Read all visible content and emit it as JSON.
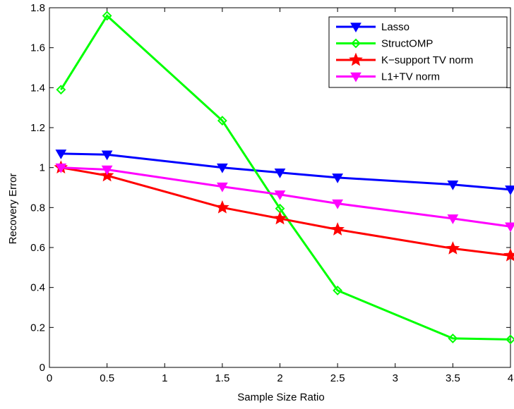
{
  "chart_data": {
    "type": "line",
    "xlabel": "Sample Size Ratio",
    "ylabel": "Recovery Error",
    "xlim": [
      0,
      4
    ],
    "ylim": [
      0,
      1.8
    ],
    "xticks": [
      0,
      0.5,
      1,
      1.5,
      2,
      2.5,
      3,
      3.5,
      4
    ],
    "yticks": [
      0,
      0.2,
      0.4,
      0.6,
      0.8,
      1,
      1.2,
      1.4,
      1.6,
      1.8
    ],
    "xtick_labels": [
      "0",
      "0.5",
      "1",
      "1.5",
      "2",
      "2.5",
      "3",
      "3.5",
      "4"
    ],
    "ytick_labels": [
      "0",
      "0.2",
      "0.4",
      "0.6",
      "0.8",
      "1",
      "1.2",
      "1.4",
      "1.6",
      "1.8"
    ],
    "grid": false,
    "legend_position": "top-right",
    "x": [
      0.1,
      0.5,
      1.5,
      2,
      2.5,
      3.5,
      4
    ],
    "series": [
      {
        "name": "Lasso",
        "color": "#0000ff",
        "marker": "triangle-down",
        "values": [
          1.07,
          1.065,
          1.0,
          0.975,
          0.95,
          0.915,
          0.89
        ]
      },
      {
        "name": "StructOMP",
        "color": "#00ff00",
        "marker": "diamond",
        "values": [
          1.39,
          1.76,
          1.235,
          0.795,
          0.385,
          0.145,
          0.14
        ]
      },
      {
        "name": "K−support TV norm",
        "color": "#ff0000",
        "marker": "star",
        "values": [
          1.0,
          0.96,
          0.8,
          0.745,
          0.69,
          0.595,
          0.56
        ]
      },
      {
        "name": "L1+TV norm",
        "color": "#ff00ff",
        "marker": "triangle-down",
        "values": [
          1.0,
          0.99,
          0.905,
          0.865,
          0.82,
          0.745,
          0.705
        ]
      }
    ]
  }
}
